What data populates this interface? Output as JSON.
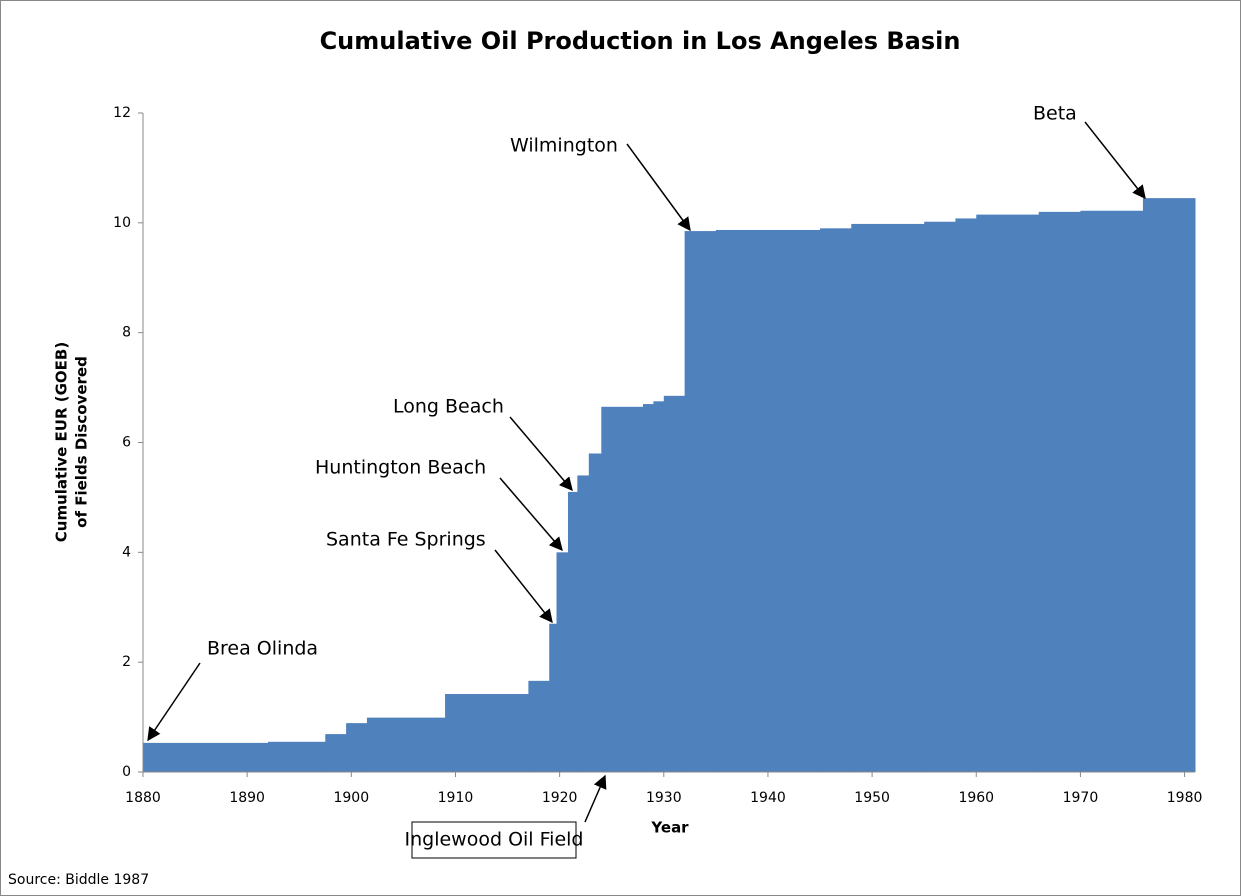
{
  "chart_data": {
    "type": "step-area",
    "title": "Cumulative Oil Production in Los Angeles Basin",
    "xlabel": "Year",
    "ylabel": [
      "Cumulative EUR (GOEB)",
      "of Fields Discovered"
    ],
    "source": "Source: Biddle 1987",
    "color": "#4f81bd",
    "x": [
      1880,
      1892,
      1897.5,
      1899.5,
      1901.5,
      1909,
      1917,
      1919,
      1919.7,
      1920.8,
      1921.7,
      1922.8,
      1924,
      1928,
      1929,
      1930,
      1932,
      1935,
      1945,
      1948,
      1955,
      1958,
      1960,
      1966,
      1970,
      1976
    ],
    "values": [
      0.53,
      0.55,
      0.69,
      0.89,
      0.99,
      1.42,
      1.66,
      2.7,
      4.0,
      5.1,
      5.4,
      5.8,
      6.65,
      6.7,
      6.75,
      6.85,
      9.85,
      9.87,
      9.9,
      9.98,
      10.02,
      10.08,
      10.15,
      10.2,
      10.22,
      10.45
    ],
    "xlim": [
      1880,
      1981
    ],
    "ylim": [
      0,
      12
    ],
    "xticks": [
      1880,
      1890,
      1900,
      1910,
      1920,
      1930,
      1940,
      1950,
      1960,
      1970,
      1980
    ],
    "yticks": [
      0,
      2,
      4,
      6,
      8,
      10,
      12
    ],
    "annotations": [
      "Brea Olinda",
      "Santa Fe Springs",
      "Huntington Beach",
      "Long Beach",
      "Wilmington",
      "Beta",
      "Inglewood Oil Field"
    ]
  }
}
